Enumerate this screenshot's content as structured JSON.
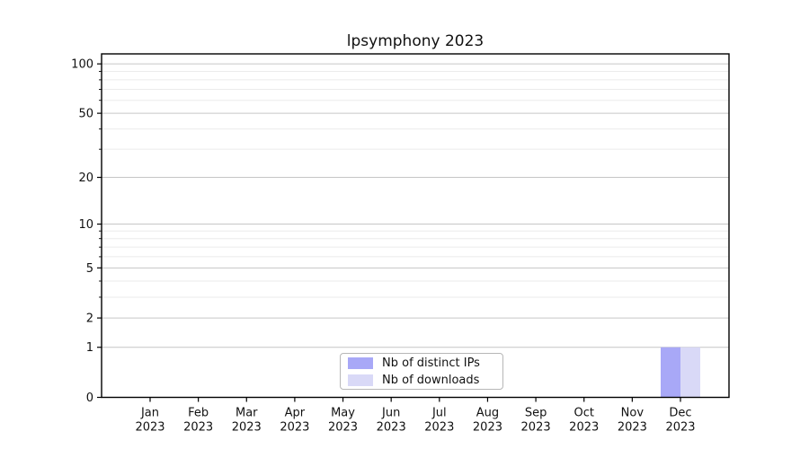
{
  "chart_data": {
    "type": "bar",
    "title": "lpsymphony 2023",
    "categories": [
      "Jan 2023",
      "Feb 2023",
      "Mar 2023",
      "Apr 2023",
      "May 2023",
      "Jun 2023",
      "Jul 2023",
      "Aug 2023",
      "Sep 2023",
      "Oct 2023",
      "Nov 2023",
      "Dec 2023"
    ],
    "series": [
      {
        "name": "Nb of distinct IPs",
        "color": "#a8a8f7",
        "values": [
          0,
          0,
          0,
          0,
          0,
          0,
          0,
          0,
          0,
          0,
          0,
          1
        ]
      },
      {
        "name": "Nb of downloads",
        "color": "#d9d9f7",
        "values": [
          0,
          0,
          0,
          0,
          0,
          0,
          0,
          0,
          0,
          0,
          0,
          1
        ]
      }
    ],
    "xlabel": "",
    "ylabel": "",
    "y_scale": "log1p",
    "y_ticks": [
      0,
      1,
      2,
      5,
      10,
      20,
      50,
      100
    ],
    "y_minor_ticks": [
      3,
      4,
      6,
      7,
      8,
      9,
      30,
      40,
      60,
      70,
      80,
      90
    ],
    "ylim": [
      0,
      115
    ],
    "grid": {
      "major_color": "#c6c6c6",
      "minor_color": "#ebebeb"
    },
    "legend": {
      "position": "lower center"
    },
    "axis_color": "#000000"
  }
}
